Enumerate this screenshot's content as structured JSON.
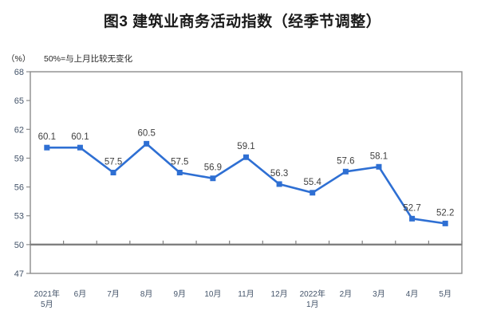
{
  "title": "图3 建筑业商务活动指数（经季节调整）",
  "unit_label": "（%）",
  "note": "50%=与上月比较无变化",
  "chart_data": {
    "type": "line",
    "title": "图3 建筑业商务活动指数（经季节调整）",
    "series_name": "建筑业商务活动指数",
    "categories": [
      "2021年\n5月",
      "6月",
      "7月",
      "8月",
      "9月",
      "10月",
      "11月",
      "12月",
      "2022年\n1月",
      "2月",
      "3月",
      "4月",
      "5月"
    ],
    "values": [
      60.1,
      60.1,
      57.5,
      60.5,
      57.5,
      56.9,
      59.1,
      56.3,
      55.4,
      57.6,
      58.1,
      52.7,
      52.2
    ],
    "labels": [
      "60.1",
      "60.1",
      "57.5",
      "60.5",
      "57.5",
      "56.9",
      "59.1",
      "56.3",
      "55.4",
      "57.6",
      "58.1",
      "52.7",
      "52.2"
    ],
    "ylim": [
      47,
      68
    ],
    "yticks": [
      47,
      50,
      53,
      56,
      59,
      62,
      65,
      68
    ],
    "reference_line": 50,
    "ylabel": "（%）",
    "xlabel": "",
    "grid": false,
    "legend": "none",
    "line_color": "#2E6FD3",
    "marker_color": "#2E6FD3",
    "data_label_color": "#3F3F3F",
    "axis_label_color": "#44546A",
    "border_color": "#8C8C8C",
    "reference_line_color": "#7F7F7F"
  }
}
